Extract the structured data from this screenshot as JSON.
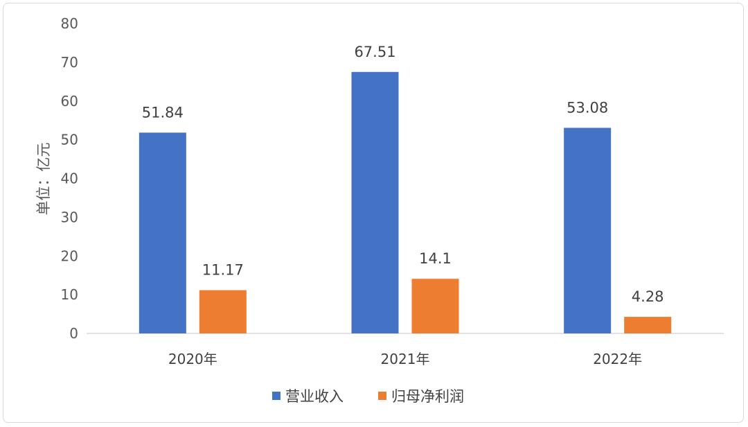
{
  "chart_data": {
    "type": "bar",
    "categories": [
      "2020年",
      "2021年",
      "2022年"
    ],
    "series": [
      {
        "name": "营业收入",
        "values": [
          51.84,
          67.51,
          53.08
        ],
        "labels": [
          "51.84",
          "67.51",
          "53.08"
        ],
        "color": "#4472C4"
      },
      {
        "name": "归母净利润",
        "values": [
          11.17,
          14.1,
          4.28
        ],
        "labels": [
          "11.17",
          "14.1",
          "4.28"
        ],
        "color": "#ED7D31"
      }
    ],
    "title": "",
    "xlabel": "",
    "ylabel": "单位：亿元",
    "ylim": [
      0,
      80
    ],
    "yticks": [
      0,
      10,
      20,
      30,
      40,
      50,
      60,
      70,
      80
    ],
    "grid": false,
    "legend_position": "bottom"
  }
}
